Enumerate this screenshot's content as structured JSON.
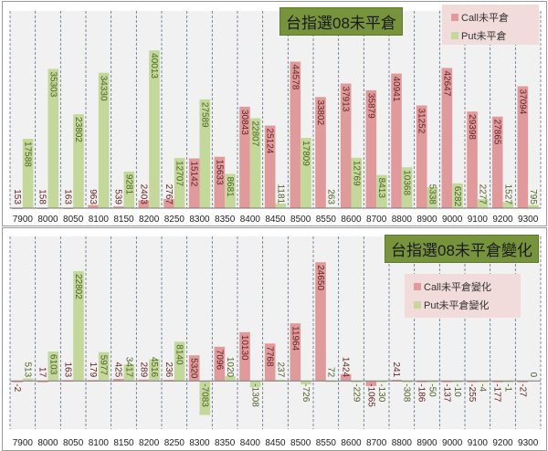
{
  "colors": {
    "call": "#e09a9b",
    "put": "#c4d89c",
    "title_bg": "#77933c",
    "legend_bg": "#f2dcdb",
    "plot_bg": "#f1f1f1"
  },
  "chart_data": [
    {
      "type": "bar",
      "title": "台指選08未平倉",
      "legend_position": "top-right",
      "categories": [
        "7900",
        "8000",
        "8050",
        "8100",
        "8150",
        "8200",
        "8250",
        "8300",
        "8350",
        "8400",
        "8450",
        "8500",
        "8550",
        "8600",
        "8700",
        "8800",
        "8900",
        "9000",
        "9100",
        "9200",
        "9300"
      ],
      "series": [
        {
          "name": "Call未平倉",
          "axis": "primary",
          "ylim": [
            0,
            60000
          ],
          "values": [
            153,
            158,
            163,
            963,
            539,
            2403,
            2767,
            15142,
            15633,
            30843,
            25124,
            44578,
            33802,
            37913,
            35879,
            40941,
            31252,
            42647,
            29398,
            27865,
            37094
          ]
        },
        {
          "name": "Put未平倉",
          "axis": "secondary",
          "ylim": [
            0,
            50000
          ],
          "values": [
            17588,
            35303,
            23802,
            34330,
            9281,
            40013,
            12707,
            27589,
            8681,
            22807,
            1181,
            17809,
            263,
            12769,
            8413,
            10368,
            5338,
            6282,
            2277,
            1527,
            795
          ]
        }
      ],
      "grid": "vertical dashed"
    },
    {
      "type": "bar",
      "title": "台指選08未平倉變化",
      "legend_position": "right",
      "categories": [
        "7900",
        "8000",
        "8050",
        "8100",
        "8150",
        "8200",
        "8250",
        "8300",
        "8350",
        "8400",
        "8450",
        "8500",
        "8550",
        "8600",
        "8700",
        "8800",
        "8900",
        "9000",
        "9100",
        "9200",
        "9300"
      ],
      "ylim": [
        -10000,
        30000
      ],
      "series": [
        {
          "name": "Call未平倉變化",
          "values": [
            -2,
            17,
            163,
            179,
            425,
            289,
            236,
            5320,
            7096,
            10130,
            7768,
            11964,
            24650,
            1424,
            -1065,
            241,
            -186,
            -137,
            -255,
            -177,
            -27
          ]
        },
        {
          "name": "Put未平倉變化",
          "values": [
            513,
            6103,
            22802,
            5977,
            3417,
            4516,
            8140,
            -7083,
            1020,
            -1308,
            237,
            -726,
            72,
            -229,
            -130,
            -308,
            -50,
            -10,
            -4,
            -1,
            0
          ]
        }
      ],
      "grid": "vertical dashed"
    }
  ]
}
